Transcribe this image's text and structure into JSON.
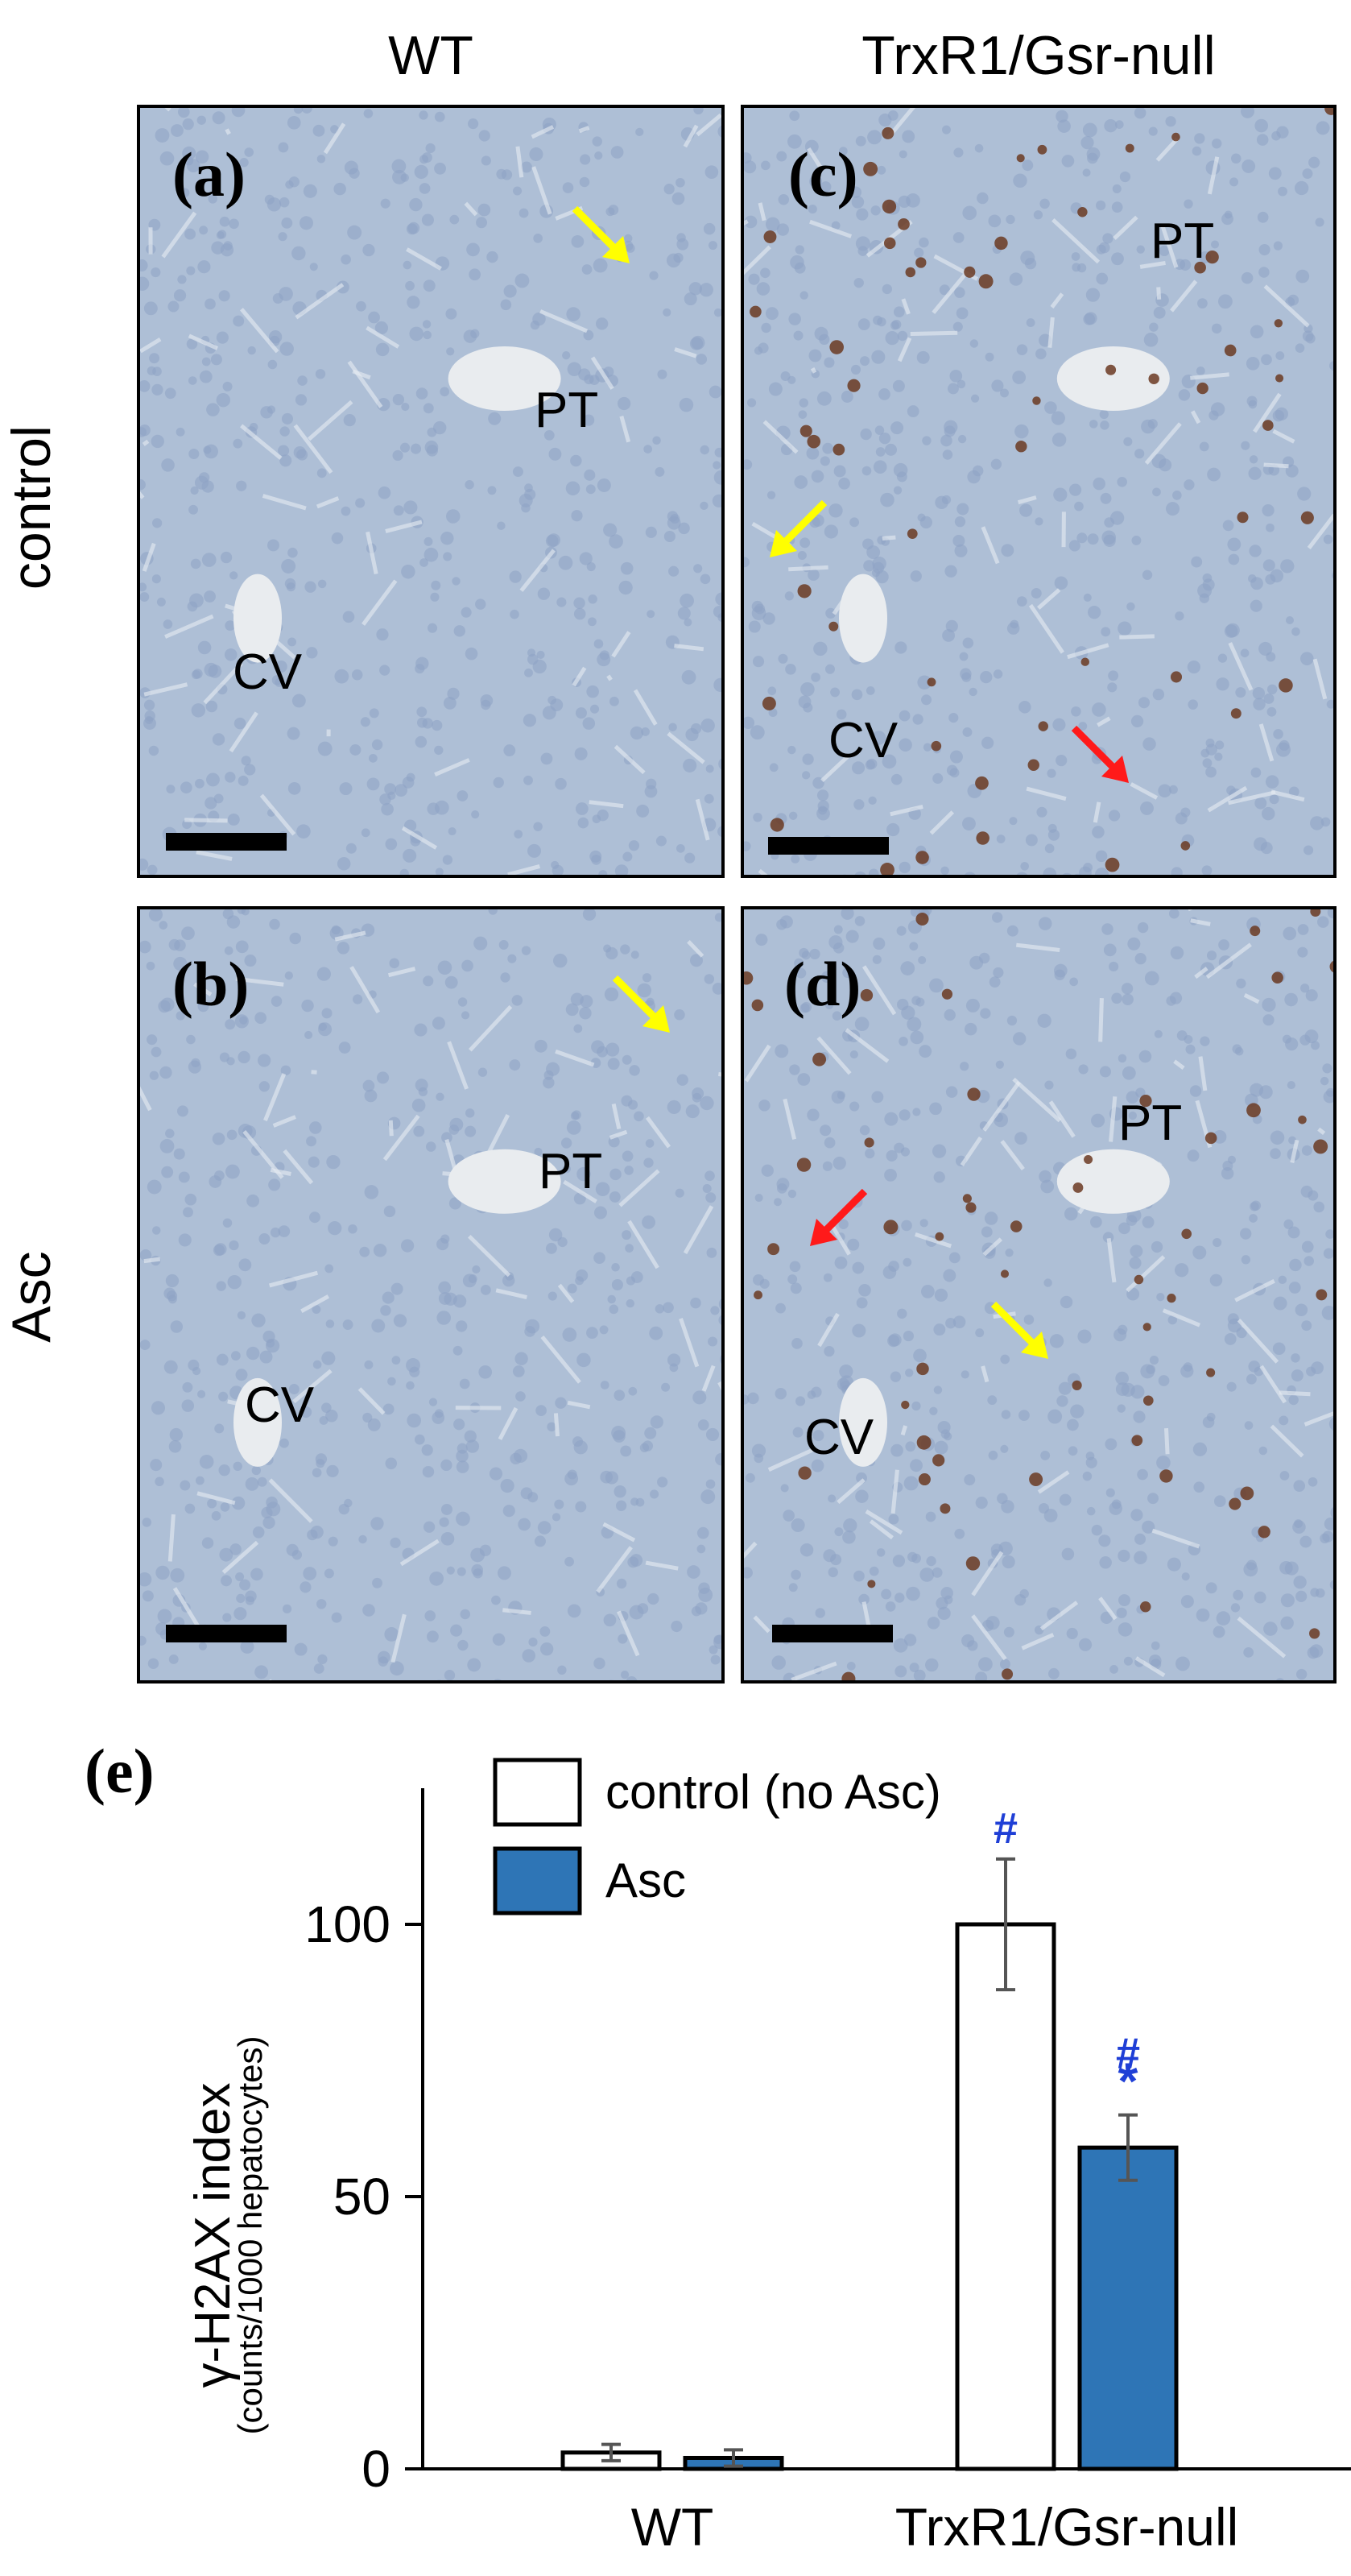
{
  "column_headers": [
    "WT",
    "TrxR1/Gsr-null"
  ],
  "row_headers": [
    "control",
    "Asc"
  ],
  "panels": [
    {
      "label": "(a)",
      "vessels": [
        "PT",
        "CV"
      ]
    },
    {
      "label": "(b)",
      "vessels": [
        "PT",
        "CV"
      ]
    },
    {
      "label": "(c)",
      "vessels": [
        "PT",
        "CV"
      ]
    },
    {
      "label": "(d)",
      "vessels": [
        "PT",
        "CV"
      ]
    }
  ],
  "colors": {
    "tissue": "#aebfd6",
    "nucleus_positive": "#6b3a22",
    "arrow_yellow": "#ffff00",
    "arrow_red": "#ff1a1a",
    "bar_asc": "#2e75b6",
    "sig_mark": "#1f3fd6"
  },
  "chart_data": {
    "type": "bar",
    "panel_label": "(e)",
    "categories": [
      "WT",
      "TrxR1/Gsr-null"
    ],
    "series": [
      {
        "name": "control (no Asc)",
        "color": "#ffffff",
        "values": [
          3,
          100
        ],
        "errors": [
          1.5,
          12
        ]
      },
      {
        "name": "Asc",
        "color": "#2e75b6",
        "values": [
          2,
          59
        ],
        "errors": [
          1.5,
          6
        ]
      }
    ],
    "ylabel": "γ-H2AX index",
    "ylabel_sub": "(counts/1000 hepatocytes)",
    "yticks": [
      0,
      50,
      100
    ],
    "ylim": [
      0,
      125
    ],
    "annotations": [
      {
        "category": 1,
        "series": 0,
        "text": "#"
      },
      {
        "category": 1,
        "series": 1,
        "text": "#"
      },
      {
        "category": 1,
        "series": 1,
        "text": "*"
      }
    ],
    "legend_position": "top"
  }
}
